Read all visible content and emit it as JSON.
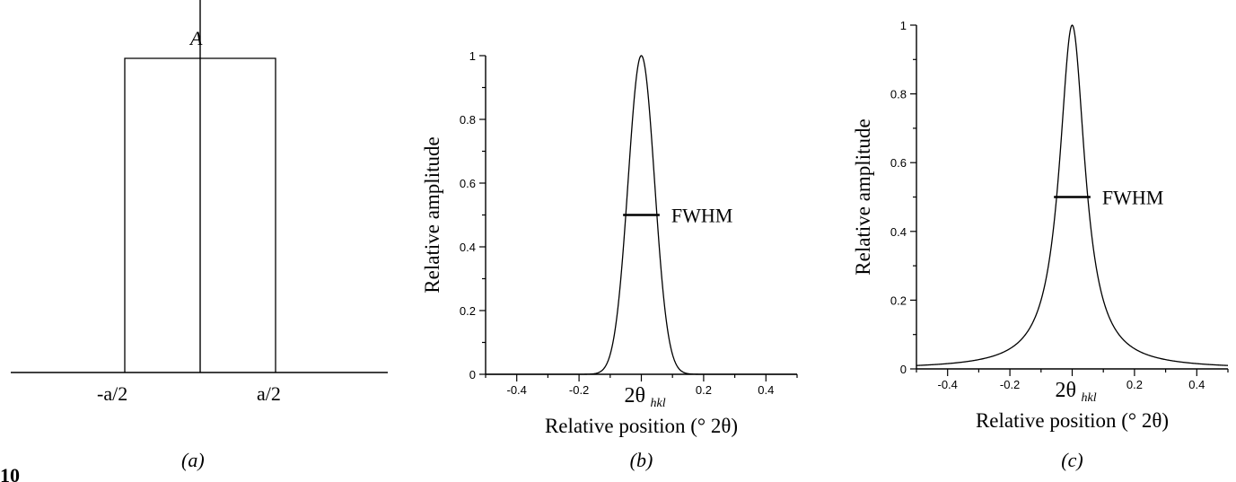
{
  "figure": {
    "corner_label": "10"
  },
  "chart_data": [
    {
      "id": "a",
      "type": "line",
      "panel_label": "(a)",
      "shape": "rectangle",
      "height_label": "A",
      "x_tick_labels": [
        "-a/2",
        "a/2"
      ],
      "x": [
        -0.5,
        -0.5,
        0.5,
        0.5
      ],
      "y": [
        0,
        1,
        1,
        0
      ]
    },
    {
      "id": "b",
      "type": "line",
      "profile": "gaussian",
      "panel_label": "(b)",
      "xlabel": "Relative position (° 2θ)",
      "ylabel": "Relative amplitude",
      "xlim": [
        -0.5,
        0.5
      ],
      "ylim": [
        0,
        1
      ],
      "x_ticks": [
        -0.4,
        -0.2,
        0.2,
        0.4
      ],
      "x_tick_labels": [
        "-0.4",
        "-0.2",
        "0.2",
        "0.4"
      ],
      "y_ticks": [
        0,
        0.2,
        0.4,
        0.6,
        0.8,
        1
      ],
      "y_tick_labels": [
        "0",
        "0.2",
        "0.4",
        "0.6",
        "0.8",
        "1"
      ],
      "center": 0,
      "fwhm": 0.1,
      "fwhm_label": "FWHM",
      "center_label": "2θ",
      "center_label_sub": "hkl"
    },
    {
      "id": "c",
      "type": "line",
      "profile": "lorentzian",
      "panel_label": "(c)",
      "xlabel": "Relative position (° 2θ)",
      "ylabel": "Relative amplitude",
      "xlim": [
        -0.5,
        0.5
      ],
      "ylim": [
        0,
        1
      ],
      "x_ticks": [
        -0.4,
        -0.2,
        0.2,
        0.4
      ],
      "x_tick_labels": [
        "-0.4",
        "-0.2",
        "0.2",
        "0.4"
      ],
      "y_ticks": [
        0,
        0.2,
        0.4,
        0.6,
        0.8,
        1
      ],
      "y_tick_labels": [
        "0",
        "0.2",
        "0.4",
        "0.6",
        "0.8",
        "1"
      ],
      "center": 0,
      "fwhm": 0.1,
      "fwhm_label": "FWHM",
      "center_label": "2θ",
      "center_label_sub": "hkl"
    }
  ]
}
